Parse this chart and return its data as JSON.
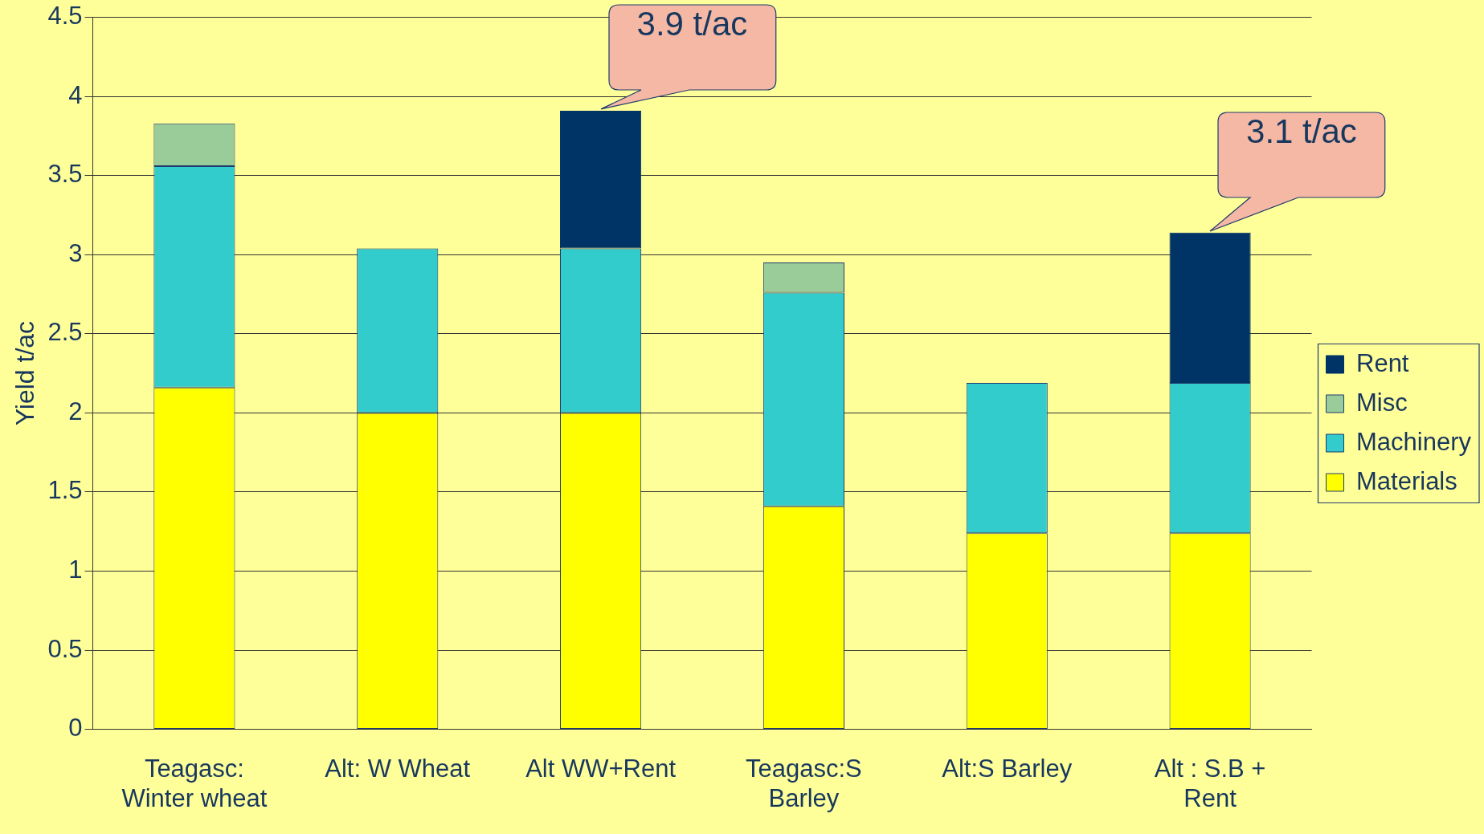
{
  "chart_data": {
    "type": "bar",
    "stacked": true,
    "ylabel": "Yield t/ac",
    "categories": [
      "Teagasc: Winter wheat",
      "Alt: W Wheat",
      "Alt WW+Rent",
      "Teagasc:S Barley",
      "Alt:S Barley",
      "Alt : S.B + Rent"
    ],
    "series": [
      {
        "name": "Materials",
        "color": "#ffff00",
        "values": [
          2.16,
          2.0,
          2.0,
          1.41,
          1.24,
          1.24
        ]
      },
      {
        "name": "Machinery",
        "color": "#33cccc",
        "values": [
          1.4,
          1.04,
          1.04,
          1.35,
          0.95,
          0.95
        ]
      },
      {
        "name": "Misc",
        "color": "#99cc99",
        "values": [
          0.27,
          null,
          null,
          0.19,
          null,
          null
        ]
      },
      {
        "name": "Rent",
        "color": "#003366",
        "values": [
          null,
          null,
          0.87,
          null,
          null,
          0.95
        ]
      }
    ],
    "ylim": [
      0,
      4.5
    ],
    "yticks": [
      0,
      0.5,
      1,
      1.5,
      2,
      2.5,
      3,
      3.5,
      4,
      4.5
    ],
    "grid": "y",
    "legend": "right",
    "annotations": [
      {
        "text": "3.9 t/ac",
        "x": "Alt WW+Rent",
        "y": 3.91
      },
      {
        "text": "3.1 t/ac",
        "x": "Alt : S.B + Rent",
        "y": 3.14
      }
    ]
  }
}
